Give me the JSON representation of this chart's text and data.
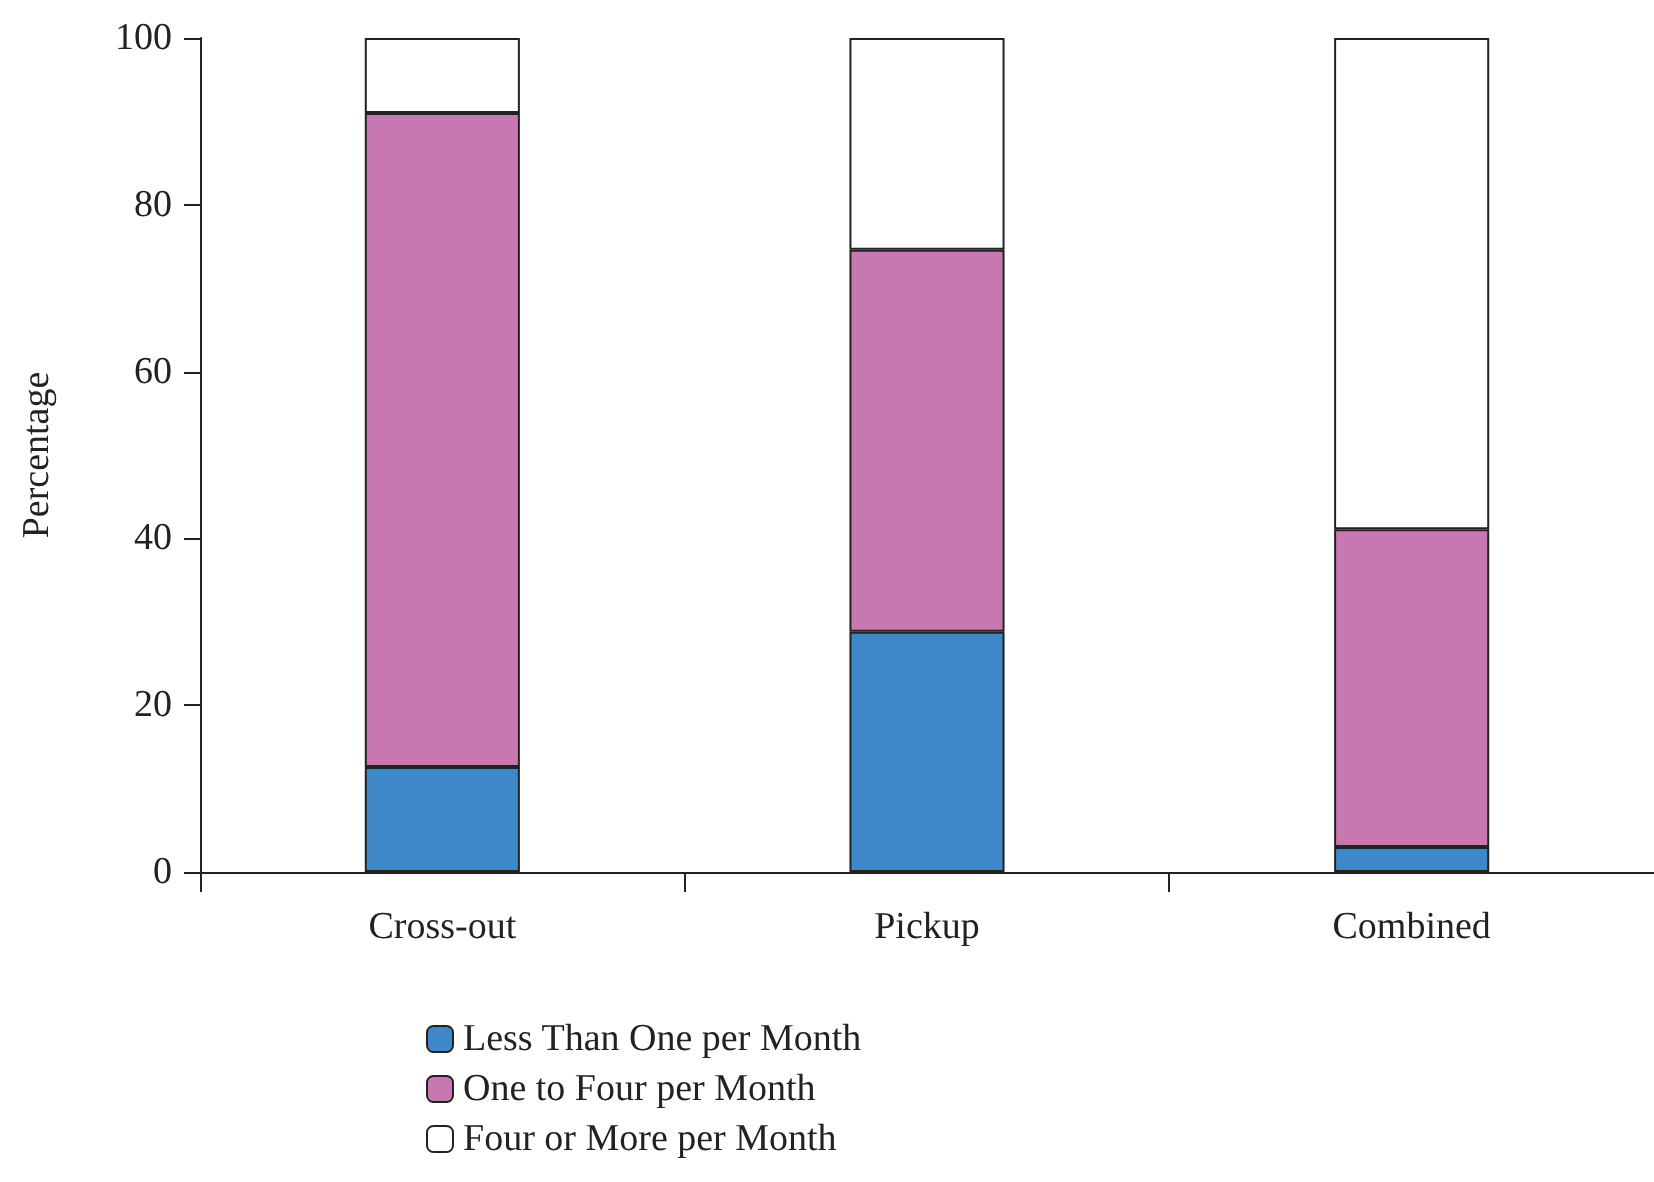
{
  "chart_data": {
    "type": "bar",
    "stacked": true,
    "ylabel": "Percentage",
    "categories": [
      "Cross-out",
      "Pickup",
      "Combined"
    ],
    "series": [
      {
        "name": "Less Than One per Month",
        "color": "#3f88c8",
        "values": [
          12.6,
          28.8,
          3.0
        ]
      },
      {
        "name": "One to Four per Month",
        "color": "#c878b0",
        "values": [
          78.4,
          45.8,
          38.1
        ]
      },
      {
        "name": "Four or More per Month",
        "color": "#ffffff",
        "values": [
          9.0,
          25.4,
          58.9
        ]
      }
    ],
    "ylim": [
      0,
      100
    ],
    "yticks": [
      0,
      20,
      40,
      60,
      80,
      100
    ],
    "grid": false,
    "legend": "bottom left"
  }
}
